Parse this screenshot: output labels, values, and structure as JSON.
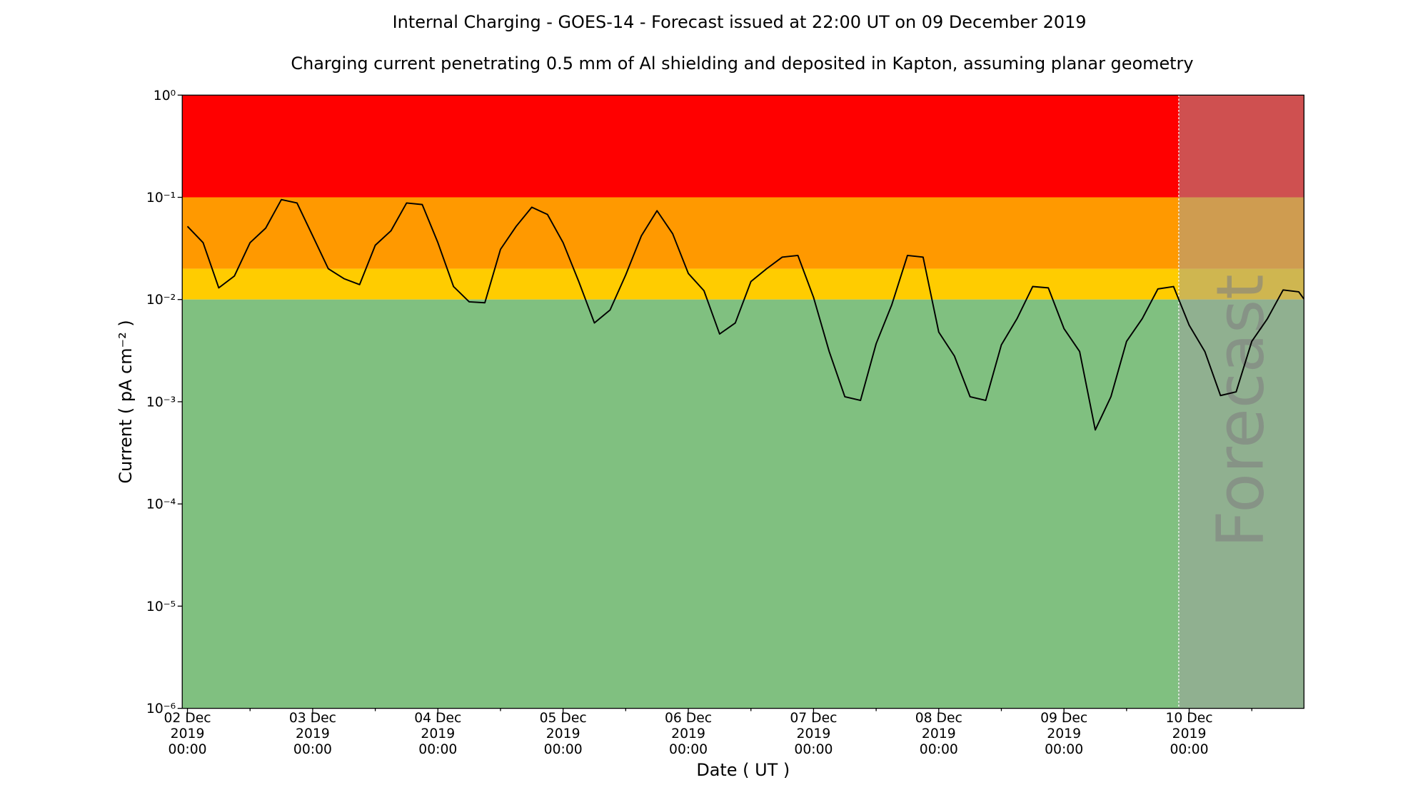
{
  "chart_data": {
    "type": "line",
    "title": "Internal Charging - GOES-14 - Forecast issued at 22:00 UT on 09 December 2019",
    "subtitle": "Charging current penetrating 0.5 mm of Al shielding and deposited in Kapton, assuming planar geometry",
    "x_label": "Date ( UT )",
    "y_label": "Current ( pA cm⁻² )",
    "log_y": true,
    "color": "#000000",
    "xlim": [
      "2019-12-01 23:00",
      "2019-12-10 22:00"
    ],
    "ylim": [
      1e-06,
      1
    ],
    "xticks": [
      {
        "value": "2019-12-02 00:00",
        "label": "02 Dec\n2019\n00:00"
      },
      {
        "value": "2019-12-03 00:00",
        "label": "03 Dec\n2019\n00:00"
      },
      {
        "value": "2019-12-04 00:00",
        "label": "04 Dec\n2019\n00:00"
      },
      {
        "value": "2019-12-05 00:00",
        "label": "05 Dec\n2019\n00:00"
      },
      {
        "value": "2019-12-06 00:00",
        "label": "06 Dec\n2019\n00:00"
      },
      {
        "value": "2019-12-07 00:00",
        "label": "07 Dec\n2019\n00:00"
      },
      {
        "value": "2019-12-08 00:00",
        "label": "08 Dec\n2019\n00:00"
      },
      {
        "value": "2019-12-09 00:00",
        "label": "09 Dec\n2019\n00:00"
      },
      {
        "value": "2019-12-10 00:00",
        "label": "10 Dec\n2019\n00:00"
      }
    ],
    "xminorticks": [
      "2019-12-02 12:00",
      "2019-12-03 12:00",
      "2019-12-04 12:00",
      "2019-12-05 12:00",
      "2019-12-06 12:00",
      "2019-12-07 12:00",
      "2019-12-08 12:00",
      "2019-12-09 12:00",
      "2019-12-10 12:00"
    ],
    "yticks": [
      {
        "value": 1e-06,
        "label": "10⁻⁶"
      },
      {
        "value": 1e-05,
        "label": "10⁻⁵"
      },
      {
        "value": 0.0001,
        "label": "10⁻⁴"
      },
      {
        "value": 0.001,
        "label": "10⁻³"
      },
      {
        "value": 0.01,
        "label": "10⁻²"
      },
      {
        "value": 0.1,
        "label": "10⁻¹"
      },
      {
        "value": 1,
        "label": "10⁰"
      }
    ],
    "bands": [
      {
        "from": 0.1,
        "to": 1,
        "color": "#ff0000"
      },
      {
        "from": 0.02,
        "to": 0.1,
        "color": "#ff9900"
      },
      {
        "from": 0.01,
        "to": 0.02,
        "color": "#ffcc00"
      },
      {
        "from": 1e-06,
        "to": 0.01,
        "color": "#80c080"
      }
    ],
    "forecast": {
      "start": "2019-12-09 22:00",
      "label": "Forecast",
      "color": "#a0a0a0"
    },
    "x": [
      "2019-12-02 00:00",
      "2019-12-02 03:00",
      "2019-12-02 06:00",
      "2019-12-02 09:00",
      "2019-12-02 12:00",
      "2019-12-02 15:00",
      "2019-12-02 18:00",
      "2019-12-02 21:00",
      "2019-12-03 00:00",
      "2019-12-03 03:00",
      "2019-12-03 06:00",
      "2019-12-03 09:00",
      "2019-12-03 12:00",
      "2019-12-03 15:00",
      "2019-12-03 18:00",
      "2019-12-03 21:00",
      "2019-12-04 00:00",
      "2019-12-04 03:00",
      "2019-12-04 06:00",
      "2019-12-04 09:00",
      "2019-12-04 12:00",
      "2019-12-04 15:00",
      "2019-12-04 18:00",
      "2019-12-04 21:00",
      "2019-12-05 00:00",
      "2019-12-05 03:00",
      "2019-12-05 06:00",
      "2019-12-05 09:00",
      "2019-12-05 12:00",
      "2019-12-05 15:00",
      "2019-12-05 18:00",
      "2019-12-05 21:00",
      "2019-12-06 00:00",
      "2019-12-06 03:00",
      "2019-12-06 06:00",
      "2019-12-06 09:00",
      "2019-12-06 12:00",
      "2019-12-06 15:00",
      "2019-12-06 18:00",
      "2019-12-06 21:00",
      "2019-12-07 00:00",
      "2019-12-07 03:00",
      "2019-12-07 06:00",
      "2019-12-07 09:00",
      "2019-12-07 12:00",
      "2019-12-07 15:00",
      "2019-12-07 18:00",
      "2019-12-07 21:00",
      "2019-12-08 00:00",
      "2019-12-08 03:00",
      "2019-12-08 06:00",
      "2019-12-08 09:00",
      "2019-12-08 12:00",
      "2019-12-08 15:00",
      "2019-12-08 18:00",
      "2019-12-08 21:00",
      "2019-12-09 00:00",
      "2019-12-09 03:00",
      "2019-12-09 06:00",
      "2019-12-09 09:00",
      "2019-12-09 12:00",
      "2019-12-09 15:00",
      "2019-12-09 18:00",
      "2019-12-09 21:00",
      "2019-12-10 00:00",
      "2019-12-10 03:00",
      "2019-12-10 06:00",
      "2019-12-10 09:00",
      "2019-12-10 12:00",
      "2019-12-10 15:00",
      "2019-12-10 18:00",
      "2019-12-10 21:00",
      "2019-12-10 22:00"
    ],
    "values": [
      0.052,
      0.036,
      0.013,
      0.017,
      0.036,
      0.05,
      0.095,
      0.088,
      0.042,
      0.02,
      0.016,
      0.014,
      0.034,
      0.047,
      0.088,
      0.085,
      0.036,
      0.0134,
      0.0095,
      0.0093,
      0.031,
      0.052,
      0.08,
      0.068,
      0.036,
      0.015,
      0.0059,
      0.0079,
      0.0174,
      0.042,
      0.074,
      0.044,
      0.018,
      0.0122,
      0.0046,
      0.0059,
      0.015,
      0.02,
      0.026,
      0.027,
      0.0105,
      0.0031,
      0.00112,
      0.00103,
      0.0037,
      0.0089,
      0.027,
      0.026,
      0.0048,
      0.0028,
      0.00112,
      0.00103,
      0.0036,
      0.0065,
      0.0134,
      0.013,
      0.0052,
      0.0031,
      0.00053,
      0.00112,
      0.0039,
      0.0065,
      0.0127,
      0.0134,
      0.0056,
      0.0031,
      0.00115,
      0.00125,
      0.0039,
      0.0065,
      0.0124,
      0.0119,
      0.0101
    ]
  }
}
